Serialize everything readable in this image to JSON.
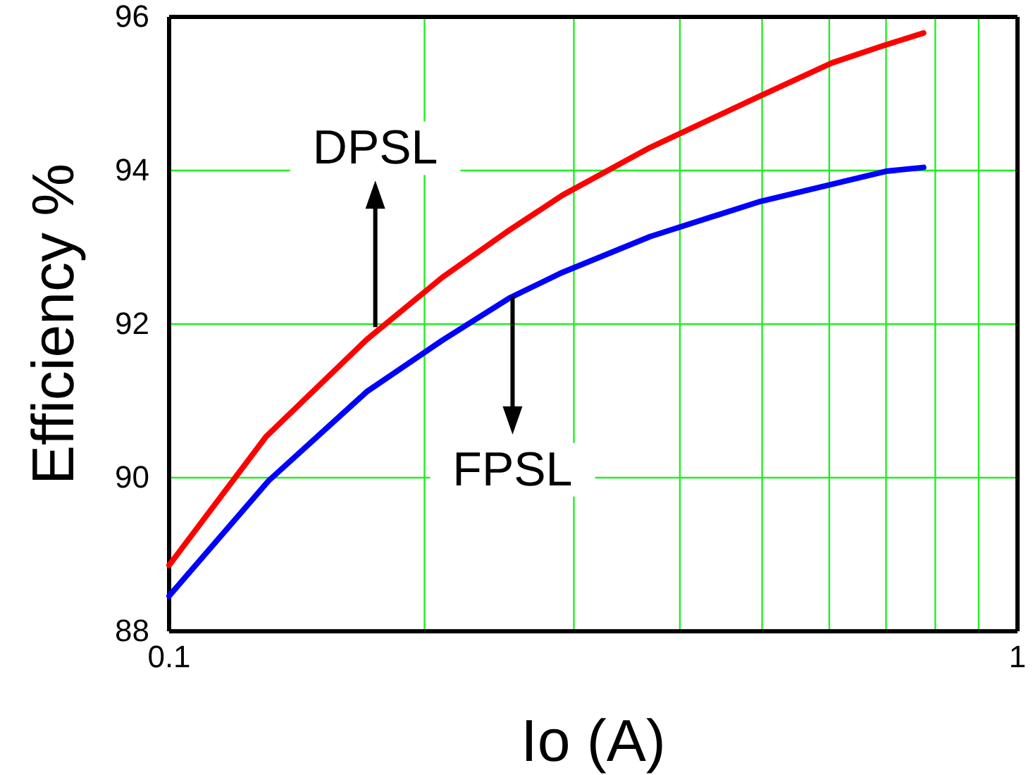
{
  "chart_data": {
    "type": "line",
    "xlabel": "Io (A)",
    "ylabel": "Efficiency %",
    "log": "x",
    "grid": true,
    "marker": "none",
    "line_style": "solid",
    "xlim": [
      0.1,
      1
    ],
    "ylim": [
      88,
      96
    ],
    "xticks": [
      0.1,
      {
        "value": 0.2,
        "label": null
      },
      {
        "value": 0.3,
        "label": null
      },
      {
        "value": 0.4,
        "label": null
      },
      {
        "value": 0.5,
        "label": null
      },
      {
        "value": 0.6,
        "label": null
      },
      {
        "value": 0.7,
        "label": null
      },
      {
        "value": 0.8,
        "label": null
      },
      {
        "value": 0.9,
        "label": null
      },
      1
    ],
    "yticks": [
      88,
      90,
      92,
      94,
      96
    ],
    "series": [
      {
        "color": "#ff0000",
        "x": [
          0.1,
          0.13,
          0.171,
          0.21,
          0.25,
          0.291,
          0.369,
          0.495,
          0.604,
          0.692,
          0.775
        ],
        "values": [
          88.86,
          90.53,
          91.8,
          92.61,
          93.2,
          93.68,
          94.3,
          94.96,
          95.4,
          95.62,
          95.79
        ]
      },
      {
        "color": "#0000ff",
        "x": [
          0.1,
          0.131,
          0.171,
          0.21,
          0.252,
          0.289,
          0.369,
          0.495,
          0.604,
          0.7,
          0.775
        ],
        "values": [
          88.46,
          89.96,
          91.12,
          91.79,
          92.34,
          92.66,
          93.14,
          93.59,
          93.82,
          93.99,
          94.04
        ]
      }
    ],
    "annotations": [
      {
        "text": "DPSL",
        "x": 0.175,
        "y": 91.96
      },
      {
        "text": "FPSL",
        "x": 0.254,
        "y": 92.36
      }
    ]
  }
}
